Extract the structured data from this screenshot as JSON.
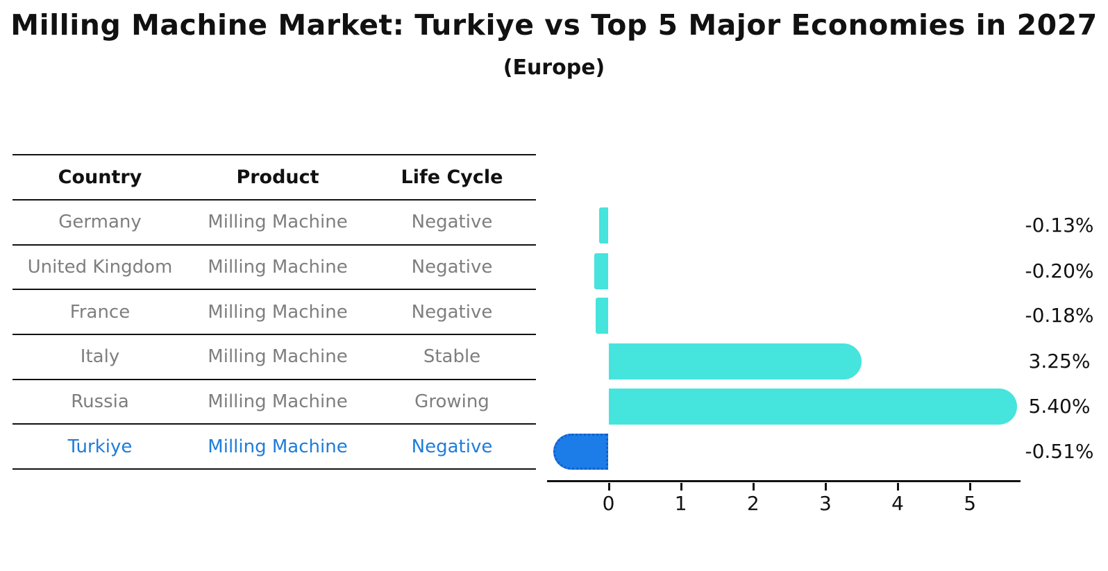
{
  "title": "Milling Machine Market: Turkiye vs Top 5 Major Economies in 2027",
  "subtitle": "(Europe)",
  "table": {
    "headers": {
      "country": "Country",
      "product": "Product",
      "life_cycle": "Life Cycle"
    },
    "rows": [
      {
        "country": "Germany",
        "product": "Milling Machine",
        "life_cycle": "Negative"
      },
      {
        "country": "United Kingdom",
        "product": "Milling Machine",
        "life_cycle": "Negative"
      },
      {
        "country": "France",
        "product": "Milling Machine",
        "life_cycle": "Negative"
      },
      {
        "country": "Italy",
        "product": "Milling Machine",
        "life_cycle": "Stable"
      },
      {
        "country": "Russia",
        "product": "Milling Machine",
        "life_cycle": "Growing"
      },
      {
        "country": "Turkiye",
        "product": "Milling Machine",
        "life_cycle": "Negative"
      }
    ]
  },
  "chart_data": {
    "type": "bar",
    "orientation": "horizontal",
    "title": "Milling Machine Market: Turkiye vs Top 5 Major Economies in 2027",
    "subtitle": "(Europe)",
    "categories": [
      "Germany",
      "United Kingdom",
      "France",
      "Italy",
      "Russia",
      "Turkiye"
    ],
    "values": [
      -0.13,
      -0.2,
      -0.18,
      3.25,
      5.4,
      -0.51
    ],
    "value_labels": [
      "-0.13%",
      "-0.20%",
      "-0.18%",
      "3.25%",
      "5.40%",
      "-0.51%"
    ],
    "x_ticks": [
      0,
      1,
      2,
      3,
      4,
      5
    ],
    "xlim": [
      -0.85,
      5.7
    ],
    "grid": false,
    "legend": false,
    "highlight_index": 5
  },
  "colors": {
    "bar": "#45e4dc",
    "highlight_bar": "#1d7de8",
    "highlight_bar_border": "#135fc9",
    "highlight_text": "#1e7cd9",
    "row_text": "#7e7e7e",
    "axis": "#111111"
  }
}
